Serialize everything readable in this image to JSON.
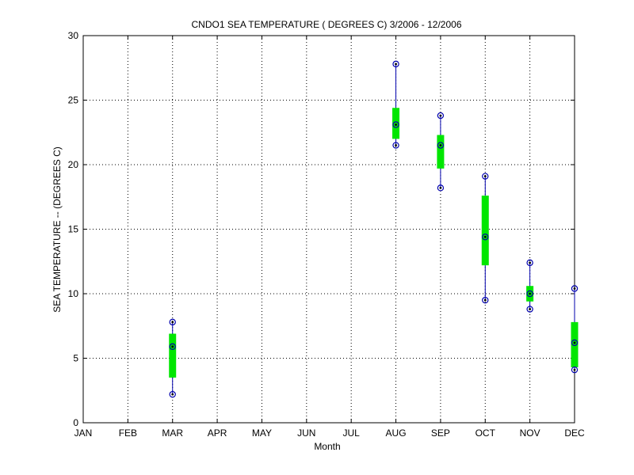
{
  "chart_data": {
    "type": "boxplot",
    "title": "CNDO1  SEA TEMPERATURE ( DEGREES C) 3/2006 - 12/2006",
    "xlabel": "Month",
    "ylabel": "SEA TEMPERATURE -- (DEGREES C)",
    "categories": [
      "JAN",
      "FEB",
      "MAR",
      "APR",
      "MAY",
      "JUN",
      "JUL",
      "AUG",
      "SEP",
      "OCT",
      "NOV",
      "DEC"
    ],
    "ylim": [
      0,
      30
    ],
    "yticks": [
      "0",
      "5",
      "10",
      "15",
      "20",
      "25",
      "30"
    ],
    "grid": true,
    "boxes": [
      {
        "category": "MAR",
        "min": 2.2,
        "q1": 3.5,
        "median": 5.9,
        "q3": 6.9,
        "max": 7.8
      },
      {
        "category": "AUG",
        "min": 21.5,
        "q1": 22.0,
        "median": 23.1,
        "q3": 24.4,
        "max": 27.8
      },
      {
        "category": "SEP",
        "min": 18.2,
        "q1": 19.7,
        "median": 21.5,
        "q3": 22.3,
        "max": 23.8
      },
      {
        "category": "OCT",
        "min": 9.5,
        "q1": 12.2,
        "median": 14.4,
        "q3": 17.6,
        "max": 19.1
      },
      {
        "category": "NOV",
        "min": 8.8,
        "q1": 9.4,
        "median": 10.0,
        "q3": 10.6,
        "max": 12.4
      },
      {
        "category": "DEC",
        "min": 4.1,
        "q1": 4.3,
        "median": 6.2,
        "q3": 7.8,
        "max": 10.4
      }
    ],
    "colors": {
      "box": "#00e600",
      "whisker": "#0000ad",
      "marker": "#000000"
    }
  }
}
